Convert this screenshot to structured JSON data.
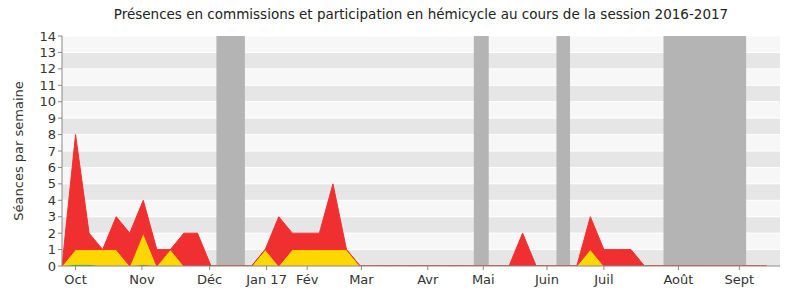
{
  "chart_data": {
    "type": "area",
    "stacked": true,
    "title": "Présences en commissions et participation en hémicycle au cours de la session 2016-2017",
    "y_label": "Séances par semaine",
    "x": [
      0,
      1,
      2,
      3,
      4,
      5,
      6,
      7,
      8,
      9,
      10,
      11,
      12,
      13,
      14,
      15,
      16,
      17,
      18,
      19,
      20,
      21,
      22,
      23,
      24,
      25,
      26,
      27,
      28,
      29,
      30,
      31,
      32,
      33,
      34,
      35,
      36,
      37,
      38,
      39,
      40,
      41,
      42,
      43,
      44,
      45,
      46,
      47,
      48,
      49,
      50,
      51,
      52
    ],
    "series": [
      {
        "color": "#33bb33",
        "values": [
          0,
          0.1,
          0.1,
          0,
          0,
          0,
          0.1,
          0,
          0,
          0,
          0,
          0,
          0,
          0,
          0,
          0,
          0,
          0,
          0,
          0,
          0,
          0,
          0,
          0,
          0,
          0,
          0,
          0,
          0,
          0,
          0,
          0,
          0,
          0,
          0,
          0,
          0,
          0,
          0,
          0,
          0,
          0,
          0,
          0,
          0,
          0,
          0,
          0,
          0,
          0,
          0,
          0,
          0
        ]
      },
      {
        "color": "#ffd700",
        "values": [
          0,
          0.9,
          0.9,
          1,
          1,
          0,
          1.9,
          0,
          1,
          0,
          0,
          0,
          0,
          0,
          0,
          1,
          0,
          1,
          1,
          1,
          1,
          1,
          0,
          0,
          0,
          0,
          0,
          0,
          0,
          0,
          0,
          0,
          0,
          0,
          0,
          0,
          0,
          0,
          0,
          1,
          0,
          0,
          0,
          0,
          0,
          0,
          0,
          0,
          0,
          0,
          0,
          0,
          0
        ]
      },
      {
        "color": "#f03030",
        "values": [
          0,
          7,
          1,
          0,
          2,
          2,
          2,
          1,
          0,
          2,
          2,
          0,
          0,
          0,
          0,
          0,
          3,
          1,
          1,
          1,
          4,
          0,
          0,
          0,
          0,
          0,
          0,
          0,
          0,
          0,
          0,
          0,
          0,
          0,
          2,
          0,
          0,
          0,
          0,
          2,
          1,
          1,
          1,
          0,
          0,
          0,
          0,
          0,
          0,
          0,
          0,
          0,
          0
        ]
      }
    ],
    "xlim": [
      0,
      53
    ],
    "xticks": [
      {
        "value": 1.0,
        "label": "Oct"
      },
      {
        "value": 5.9,
        "label": "Nov"
      },
      {
        "value": 10.9,
        "label": "Déc"
      },
      {
        "value": 15.1,
        "label": "Jan 17"
      },
      {
        "value": 18.1,
        "label": "Fév"
      },
      {
        "value": 22.1,
        "label": "Mar"
      },
      {
        "value": 27.0,
        "label": "Avr"
      },
      {
        "value": 31.1,
        "label": "Mai"
      },
      {
        "value": 35.8,
        "label": "Juin"
      },
      {
        "value": 40.0,
        "label": "Juil"
      },
      {
        "value": 45.5,
        "label": "Août"
      },
      {
        "value": 50.0,
        "label": "Sept"
      }
    ],
    "ylim": [
      0,
      14
    ],
    "yticks": [
      0,
      1,
      2,
      3,
      4,
      5,
      6,
      7,
      8,
      9,
      10,
      11,
      12,
      13,
      14
    ],
    "grid": true,
    "vacations": [
      {
        "start": 11.4,
        "end": 13.5
      },
      {
        "start": 30.4,
        "end": 31.5
      },
      {
        "start": 36.5,
        "end": 37.5
      },
      {
        "start": 44.4,
        "end": 50.5
      }
    ]
  }
}
